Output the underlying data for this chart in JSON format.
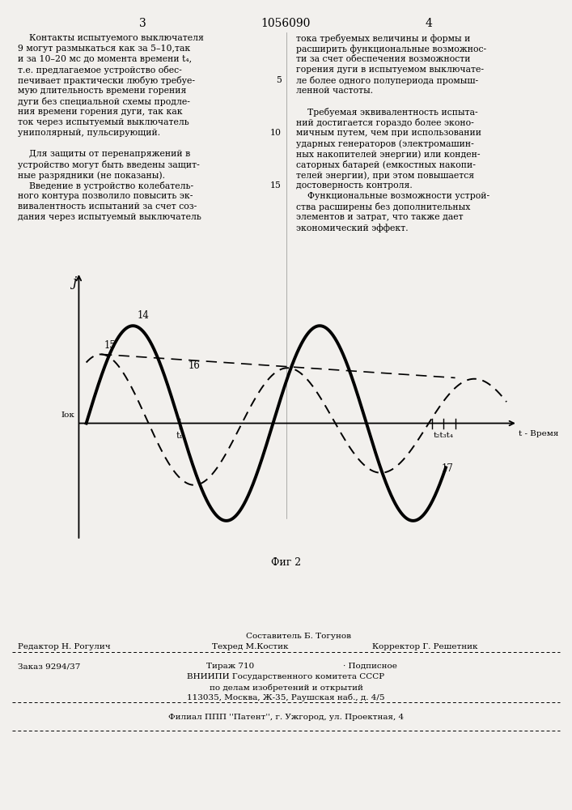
{
  "bg_color": "#f2f0ed",
  "header_text": "1056090",
  "page_left": "3",
  "page_right": "4",
  "fig_caption": "Фиг 2",
  "footer_editor": "Редактор Н. Рогулич",
  "footer_compiler": "Составитель Б. Тогунов",
  "footer_techred": "Техред М.Костик",
  "footer_corrector": "Корректор Г. Решетник",
  "footer_order": "Заказ 9294/37",
  "footer_tirage": "Тираж 710",
  "footer_signed": "· Подписное",
  "footer_vnipi": "ВНИИПИ Государственного комитета СССР",
  "footer_dept": "по делам изобретений и открытий",
  "footer_addr": "113035, Москва, Ж-35, Раушская наб., д. 4/5",
  "footer_filial": "Филиал ППП ''Патент'', г. Ужгород, ул. Проектная, 4",
  "left_col": [
    "    Контакты испытуемого выключателя",
    "9 могут размыкаться как за 5–10,так",
    "и за 10–20 мс до момента времени t₄,",
    "т.е. предлагаемое устройство обес-",
    "печивает практически любую требуе-",
    "мую длительность времени горения",
    "дуги без специальной схемы продле-",
    "ния времени горения дуги, так как",
    "ток через испытуемый выключатель",
    "униполярный, пульсирующий.",
    "",
    "    Для защиты от перенапряжений в",
    "устройство могут быть введены защит-",
    "ные разрядники (не показаны).",
    "    Введение в устройство колебатель-",
    "ного контура позволило повысить эк-",
    "вивалентность испытаний за счет соз-",
    "дания через испытуемый выключатель"
  ],
  "right_col": [
    "тока требуемых величины и формы и",
    "расширить функциональные возможнос-",
    "ти за счет обеспечения возможности",
    "горения дуги в испытуемом выключате-",
    "ле более одного полупериода промыш-",
    "ленной частоты.",
    "",
    "    Требуемая эквивалентность испыта-",
    "ний достигается гораздо более эконо-",
    "мичным путем, чем при использовании",
    "ударных генераторов (электромашин-",
    "ных накопителей энергии) или конден-",
    "саторных батарей (емкостных накопи-",
    "телей энергии), при этом повышается",
    "достоверность контроля.",
    "    Функциональные возможности устрой-",
    "ства расширены без дополнительных",
    "элементов и затрат, что также дает",
    "экономический эффект."
  ],
  "line_numbers": {
    "5": 4,
    "10": 9,
    "15": 14
  }
}
